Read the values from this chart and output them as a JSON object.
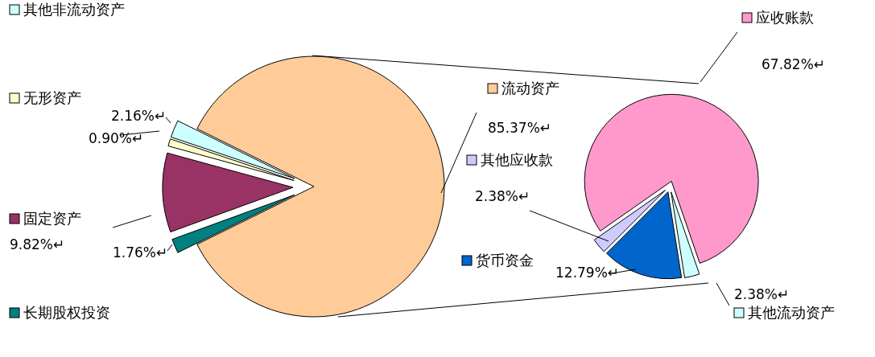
{
  "chart_data": [
    {
      "type": "pie",
      "categories": [
        "流动资产",
        "其他非流动资产",
        "无形资产",
        "固定资产",
        "长期股权投资"
      ],
      "values": [
        85.37,
        2.16,
        0.9,
        9.82,
        1.76
      ],
      "colors": [
        "#ffcc99",
        "#ccffff",
        "#ffffcc",
        "#993366",
        "#008080"
      ],
      "value_labels": [
        "85.37%↵",
        "2.16%↵",
        "0.90%↵",
        "9.82%↵",
        "1.76%↵"
      ],
      "legend": "left"
    },
    {
      "type": "pie",
      "categories": [
        "应收账款",
        "其他流动资产",
        "货币资金",
        "其他应收款"
      ],
      "values": [
        67.82,
        2.38,
        12.79,
        2.38
      ],
      "colors": [
        "#ff99cc",
        "#ccffff",
        "#0066cc",
        "#ccccff"
      ],
      "value_labels": [
        "67.82%↵",
        "2.38%↵",
        "12.79%↵",
        "2.38%↵"
      ],
      "legend": "left"
    }
  ]
}
